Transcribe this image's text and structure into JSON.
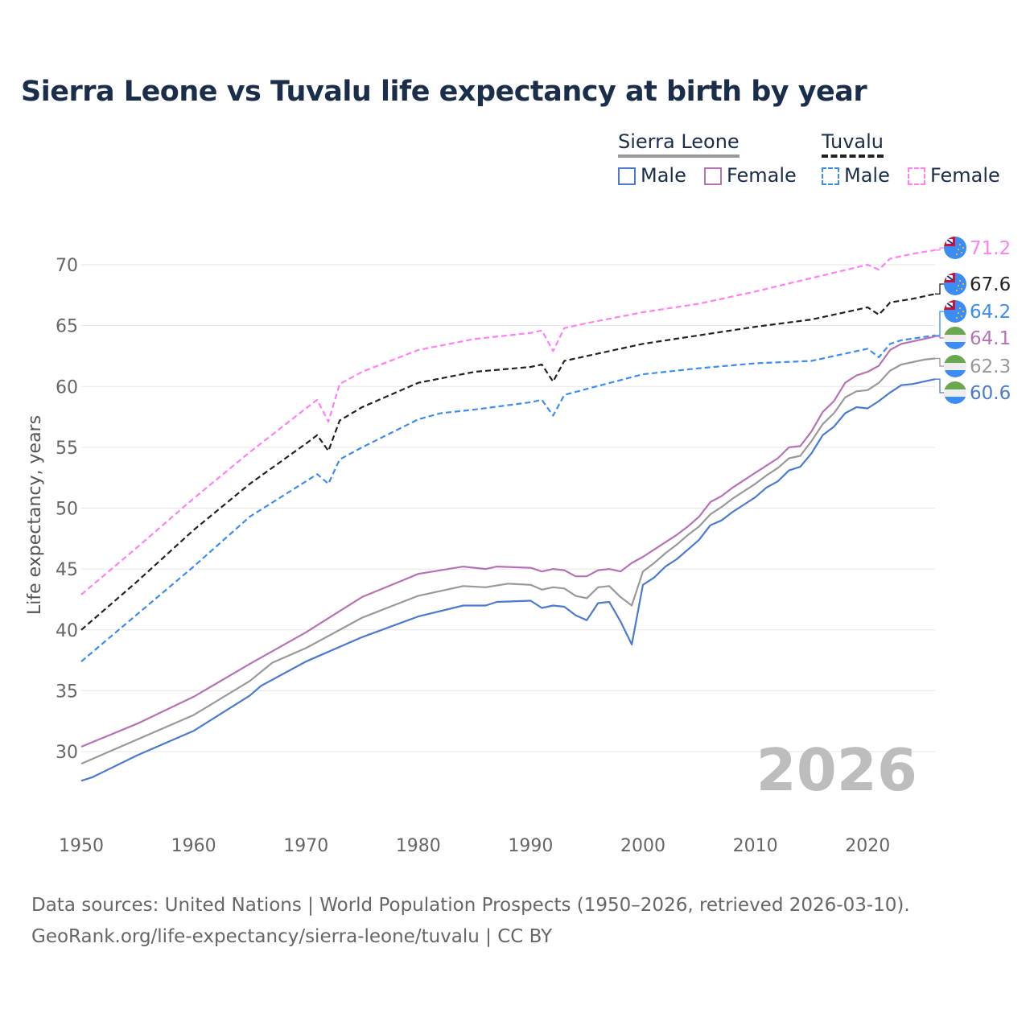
{
  "title": "Sierra Leone vs Tuvalu life expectancy at birth by year",
  "legend": {
    "groups": [
      {
        "name": "Sierra Leone",
        "items": [
          "Male",
          "Female"
        ]
      },
      {
        "name": "Tuvalu",
        "items": [
          "Male",
          "Female"
        ]
      }
    ]
  },
  "year_watermark": "2026",
  "footer": {
    "line1": "Data sources: United Nations | World Population Prospects (1950–2026, retrieved 2026-03-10).",
    "line2": "GeoRank.org/life-expectancy/sierra-leone/tuvalu | CC BY"
  },
  "chart_data": {
    "type": "line",
    "title": "Sierra Leone vs Tuvalu life expectancy at birth by year",
    "xlabel": "",
    "ylabel": "Life expectancy, years",
    "xlim": [
      1950,
      2026
    ],
    "ylim": [
      24.3,
      72
    ],
    "xticks": [
      1950,
      1960,
      1970,
      1980,
      1990,
      2000,
      2010,
      2020
    ],
    "yticks": [
      30,
      35,
      40,
      45,
      50,
      55,
      60,
      65,
      70
    ],
    "grid": true,
    "legend_position": "top-right",
    "series": [
      {
        "name": "Tuvalu Female",
        "country": "Tuvalu",
        "color": "#ff80f0",
        "dash": true,
        "end_label": "71.2",
        "x": [
          1950,
          1955,
          1960,
          1965,
          1970,
          1971,
          1972,
          1973,
          1975,
          1980,
          1985,
          1990,
          1991,
          1992,
          1993,
          1995,
          2000,
          2005,
          2010,
          2015,
          2020,
          2021,
          2022,
          2024,
          2026
        ],
        "y": [
          42.9,
          46.8,
          50.8,
          54.6,
          58.2,
          58.9,
          57.1,
          60.2,
          61.2,
          63.0,
          63.9,
          64.4,
          64.6,
          62.9,
          64.8,
          65.2,
          66.1,
          66.8,
          67.8,
          68.9,
          70.0,
          69.6,
          70.5,
          70.9,
          71.2
        ]
      },
      {
        "name": "Tuvalu",
        "country": "Tuvalu",
        "color": "#222222",
        "dash": true,
        "end_label": "67.6",
        "x": [
          1950,
          1955,
          1960,
          1965,
          1970,
          1971,
          1972,
          1973,
          1975,
          1980,
          1985,
          1990,
          1991,
          1992,
          1993,
          1995,
          2000,
          2005,
          2010,
          2015,
          2019,
          2020,
          2021,
          2022,
          2024,
          2025,
          2026
        ],
        "y": [
          40.0,
          44.0,
          48.2,
          52.0,
          55.3,
          56.0,
          54.7,
          57.2,
          58.3,
          60.3,
          61.2,
          61.6,
          61.8,
          60.4,
          62.1,
          62.5,
          63.5,
          64.2,
          64.9,
          65.5,
          66.3,
          66.5,
          65.9,
          66.9,
          67.2,
          67.4,
          67.6
        ]
      },
      {
        "name": "Tuvalu Male",
        "country": "Tuvalu",
        "color": "#3b8cf5",
        "dash": true,
        "end_label": "64.2",
        "x": [
          1950,
          1955,
          1960,
          1965,
          1970,
          1971,
          1972,
          1973,
          1975,
          1980,
          1982,
          1985,
          1990,
          1991,
          1992,
          1993,
          1995,
          2000,
          2005,
          2010,
          2015,
          2020,
          2021,
          2022,
          2023,
          2026
        ],
        "y": [
          37.4,
          41.3,
          45.2,
          49.3,
          52.2,
          52.8,
          52.0,
          54.0,
          55.0,
          57.3,
          57.8,
          58.1,
          58.7,
          58.9,
          57.6,
          59.3,
          59.8,
          61.0,
          61.5,
          61.9,
          62.1,
          63.1,
          62.4,
          63.5,
          63.8,
          64.2
        ]
      },
      {
        "name": "Sierra Leone Female",
        "country": "Sierra Leone",
        "color": "#b573b5",
        "dash": false,
        "end_label": "64.1",
        "x": [
          1950,
          1955,
          1960,
          1965,
          1970,
          1975,
          1980,
          1984,
          1986,
          1987,
          1990,
          1991,
          1992,
          1993,
          1994,
          1995,
          1996,
          1997,
          1998,
          1999,
          2000,
          2001,
          2002,
          2003,
          2004,
          2005,
          2006,
          2007,
          2008,
          2009,
          2010,
          2011,
          2012,
          2013,
          2014,
          2015,
          2016,
          2017,
          2018,
          2019,
          2020,
          2021,
          2022,
          2023,
          2024,
          2025,
          2026
        ],
        "y": [
          30.4,
          32.3,
          34.5,
          37.2,
          39.8,
          42.7,
          44.6,
          45.2,
          45.0,
          45.2,
          45.1,
          44.8,
          45.0,
          44.9,
          44.4,
          44.4,
          44.9,
          45.0,
          44.8,
          45.5,
          46.0,
          46.6,
          47.2,
          47.8,
          48.5,
          49.3,
          50.5,
          51.0,
          51.7,
          52.3,
          52.9,
          53.5,
          54.1,
          55.0,
          55.1,
          56.3,
          57.9,
          58.8,
          60.3,
          60.9,
          61.2,
          61.7,
          63.0,
          63.5,
          63.7,
          63.9,
          64.1
        ]
      },
      {
        "name": "Sierra Leone",
        "country": "Sierra Leone",
        "color": "#999999",
        "dash": false,
        "end_label": "62.3",
        "x": [
          1950,
          1955,
          1960,
          1965,
          1967,
          1970,
          1975,
          1980,
          1984,
          1986,
          1988,
          1990,
          1991,
          1992,
          1993,
          1994,
          1995,
          1996,
          1997,
          1998,
          1999,
          2000,
          2001,
          2002,
          2003,
          2004,
          2005,
          2006,
          2007,
          2008,
          2009,
          2010,
          2011,
          2012,
          2013,
          2014,
          2015,
          2016,
          2017,
          2018,
          2019,
          2020,
          2021,
          2022,
          2023,
          2024,
          2025,
          2026
        ],
        "y": [
          29.0,
          31.0,
          33.0,
          35.8,
          37.3,
          38.5,
          41.0,
          42.8,
          43.6,
          43.5,
          43.8,
          43.7,
          43.3,
          43.5,
          43.4,
          42.8,
          42.6,
          43.5,
          43.6,
          42.7,
          42.0,
          44.8,
          45.5,
          46.3,
          47.0,
          47.8,
          48.5,
          49.5,
          50.1,
          50.8,
          51.4,
          52.0,
          52.7,
          53.3,
          54.1,
          54.3,
          55.5,
          56.9,
          57.8,
          59.1,
          59.6,
          59.7,
          60.3,
          61.3,
          61.8,
          62.0,
          62.2,
          62.3
        ]
      },
      {
        "name": "Sierra Leone Male",
        "country": "Sierra Leone",
        "color": "#4a7bd0",
        "dash": false,
        "end_label": "60.6",
        "x": [
          1950,
          1951,
          1955,
          1960,
          1965,
          1966,
          1970,
          1975,
          1980,
          1984,
          1986,
          1987,
          1990,
          1991,
          1992,
          1993,
          1994,
          1995,
          1996,
          1997,
          1998,
          1999,
          2000,
          2001,
          2002,
          2003,
          2004,
          2005,
          2006,
          2007,
          2008,
          2009,
          2010,
          2011,
          2012,
          2013,
          2014,
          2015,
          2016,
          2017,
          2018,
          2019,
          2020,
          2021,
          2022,
          2023,
          2024,
          2025,
          2026
        ],
        "y": [
          27.6,
          27.9,
          29.7,
          31.7,
          34.6,
          35.4,
          37.4,
          39.4,
          41.1,
          42.0,
          42.0,
          42.3,
          42.4,
          41.8,
          42.0,
          41.9,
          41.2,
          40.8,
          42.2,
          42.3,
          40.7,
          38.8,
          43.7,
          44.3,
          45.2,
          45.8,
          46.6,
          47.4,
          48.6,
          49.0,
          49.7,
          50.3,
          50.9,
          51.7,
          52.2,
          53.1,
          53.4,
          54.5,
          56.0,
          56.7,
          57.8,
          58.3,
          58.2,
          58.8,
          59.5,
          60.1,
          60.2,
          60.4,
          60.6
        ]
      }
    ]
  }
}
